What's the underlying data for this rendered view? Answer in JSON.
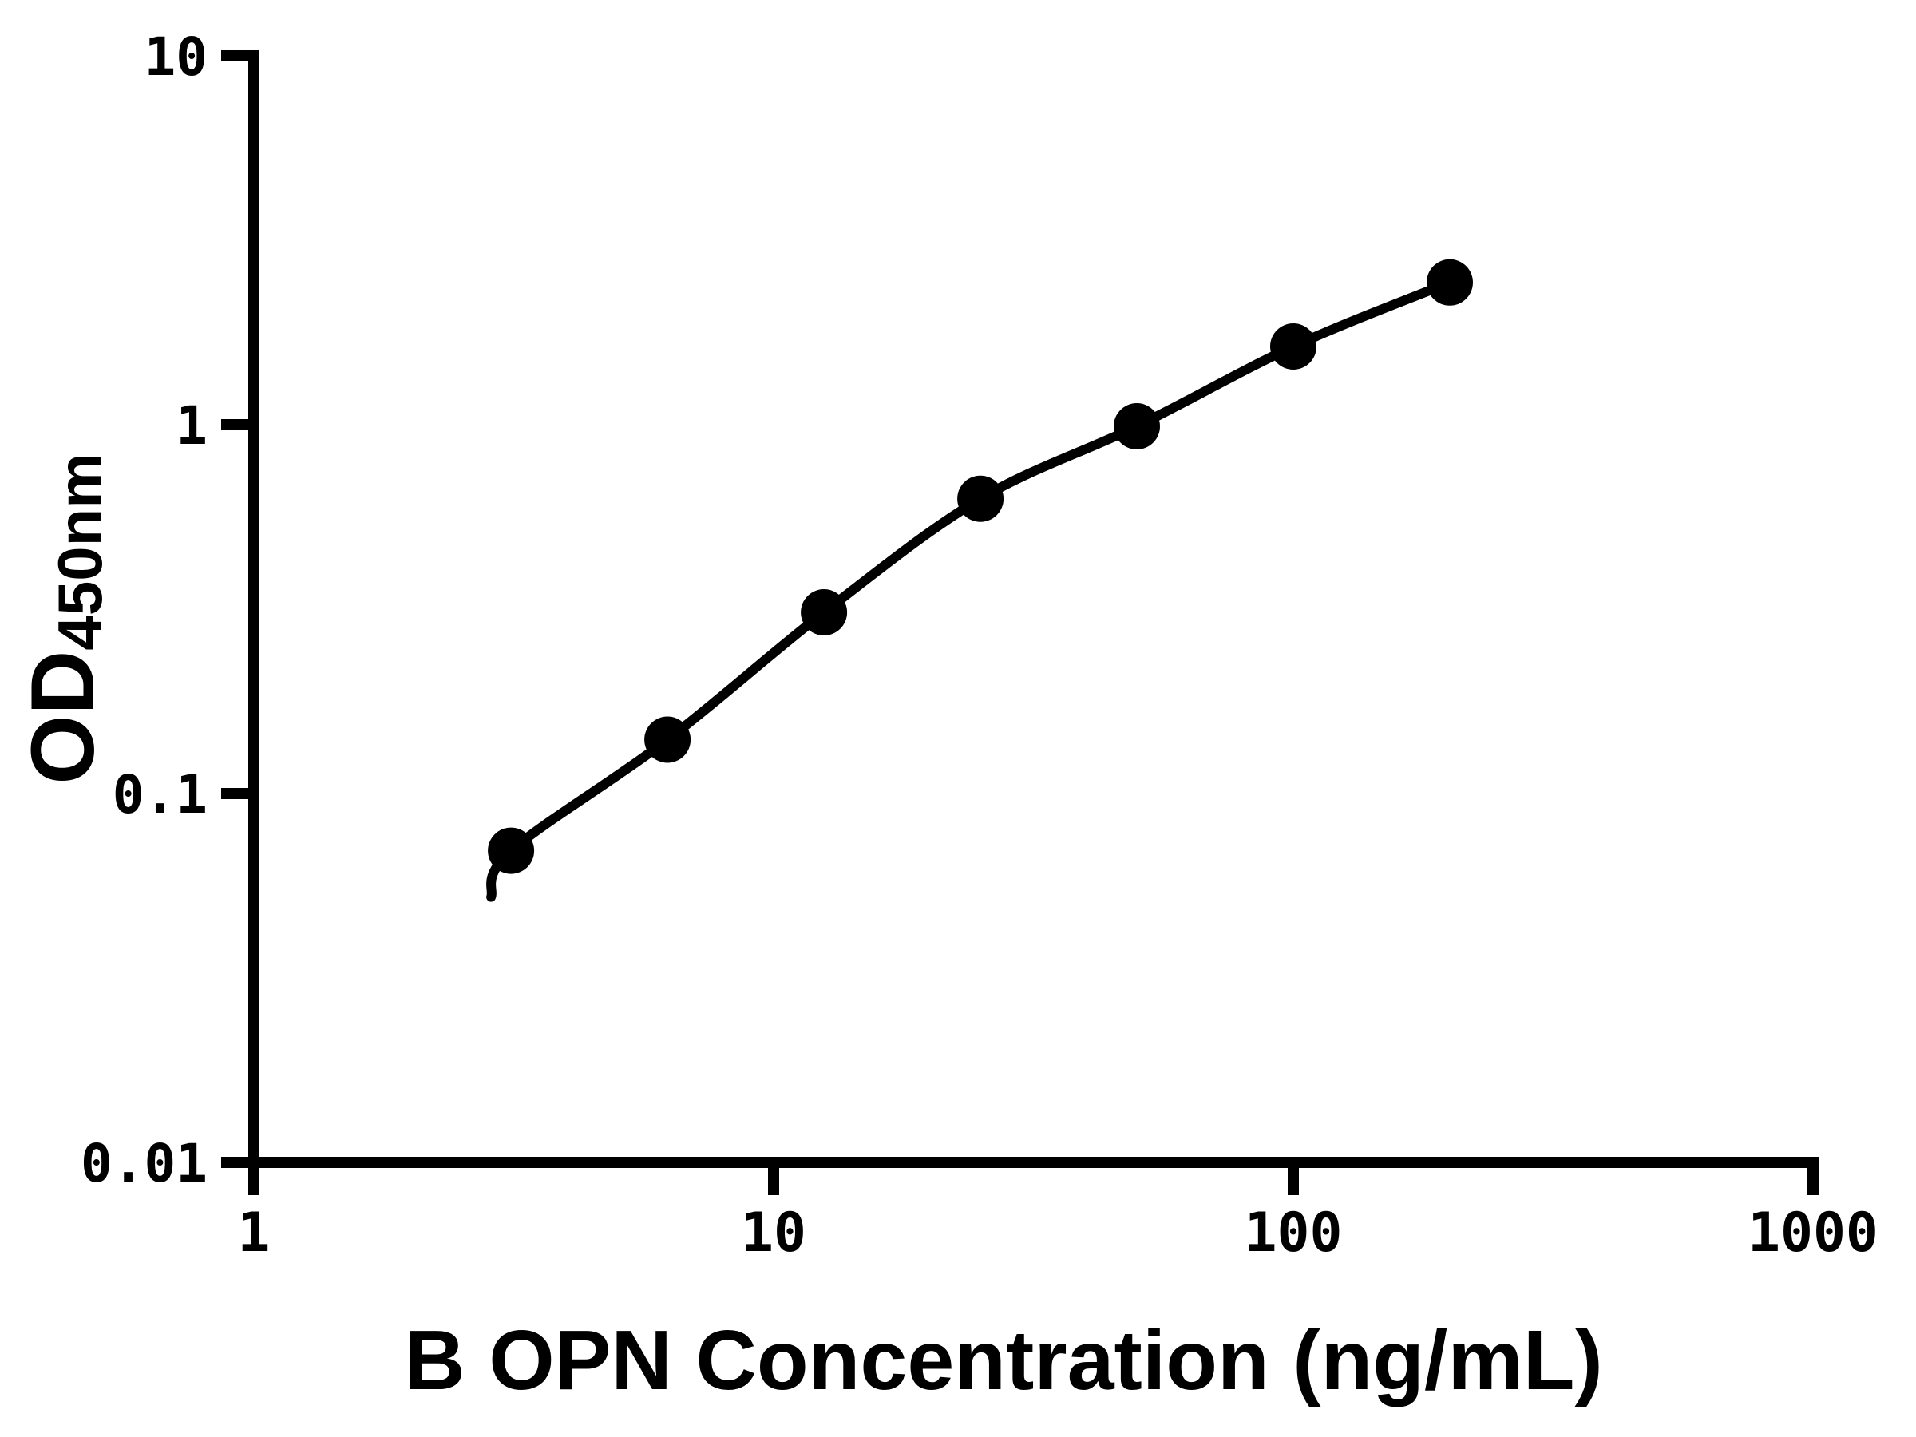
{
  "chart_data": {
    "type": "scatter",
    "xlabel": "B OPN Concentration (ng/mL)",
    "ylabel": "OD",
    "ylabel_subscript": "450nm",
    "x_scale": "log",
    "y_scale": "log",
    "xlim": [
      1,
      1000
    ],
    "ylim": [
      0.01,
      10
    ],
    "x_ticks": [
      1,
      10,
      100,
      1000
    ],
    "x_tick_labels": [
      "1",
      "10",
      "100",
      "1000"
    ],
    "y_ticks": [
      10,
      1,
      0.1,
      0.01
    ],
    "y_tick_labels": [
      "10",
      "1",
      "0.1",
      "0.01"
    ],
    "grid": false,
    "legend": "none",
    "colors": {
      "marker": "#000000",
      "line": "#000000",
      "axis": "#000000"
    },
    "series": [
      {
        "marker": "filled-circle",
        "has_fit_curve": true,
        "points": [
          {
            "x": 3.125,
            "y": 0.07
          },
          {
            "x": 6.25,
            "y": 0.14
          },
          {
            "x": 12.5,
            "y": 0.31
          },
          {
            "x": 25,
            "y": 0.63
          },
          {
            "x": 50,
            "y": 0.99
          },
          {
            "x": 100,
            "y": 1.63
          },
          {
            "x": 200,
            "y": 2.43
          }
        ]
      }
    ]
  }
}
